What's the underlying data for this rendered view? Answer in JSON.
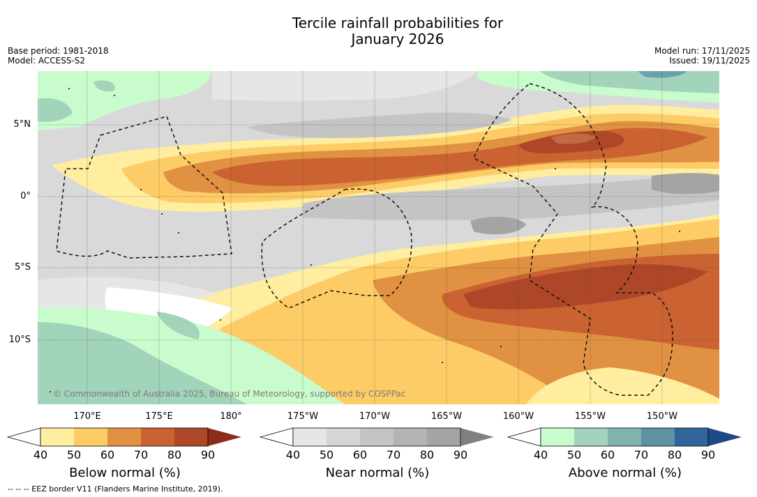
{
  "title": {
    "line1": "Tercile rainfall probabilities for",
    "line2": "January 2026"
  },
  "meta_left": {
    "base_period": "Base period: 1981-2018",
    "model": "Model: ACCESS-S2"
  },
  "meta_right": {
    "model_run": "Model run: 17/11/2025",
    "issued": "Issued: 19/11/2025"
  },
  "axes": {
    "lat_labels": [
      "5°N",
      "0°",
      "5°S",
      "10°S"
    ],
    "lon_labels": [
      "170°E",
      "175°E",
      "180°",
      "175°W",
      "170°W",
      "165°W",
      "160°W",
      "155°W",
      "150°W"
    ]
  },
  "copyright": "© Commonwealth of Australia 2025, Bureau of Meteorology, supported by COSPPac",
  "colorbars": [
    {
      "title": "Below normal (%)",
      "ticks": [
        "40",
        "50",
        "60",
        "70",
        "80",
        "90"
      ],
      "colors": [
        "#ffffff",
        "#ffeda0",
        "#fdcc66",
        "#e09141",
        "#ca6231",
        "#ad4728",
        "#8c2d1c"
      ]
    },
    {
      "title": "Near normal (%)",
      "ticks": [
        "40",
        "50",
        "60",
        "70",
        "80",
        "90"
      ],
      "colors": [
        "#ffffff",
        "#e6e6e6",
        "#d6d6d6",
        "#c4c4c4",
        "#b4b4b4",
        "#a4a4a4",
        "#808080"
      ]
    },
    {
      "title": "Above normal (%)",
      "ticks": [
        "40",
        "50",
        "60",
        "70",
        "80",
        "90"
      ],
      "colors": [
        "#ffffff",
        "#c9fccc",
        "#a2d3bb",
        "#7fb3ae",
        "#5e92a2",
        "#30649a",
        "#1b4a86"
      ]
    }
  ],
  "legend_line": "--  --  -- EEZ border V11 (Flanders Marine Institute, 2019).",
  "colors": {
    "below_light": "#ffeda0",
    "below_mid": "#fdcc66",
    "below_60": "#e09141",
    "below_70": "#ca6231",
    "below_80": "#ad4728",
    "near_40": "#e6e6e6",
    "near_50": "#d6d6d6",
    "near_60": "#c4c4c4",
    "near_70": "#a4a4a4",
    "above_40": "#c9fccc",
    "above_50": "#a2d3bb",
    "above_70": "#6aa2ab"
  }
}
